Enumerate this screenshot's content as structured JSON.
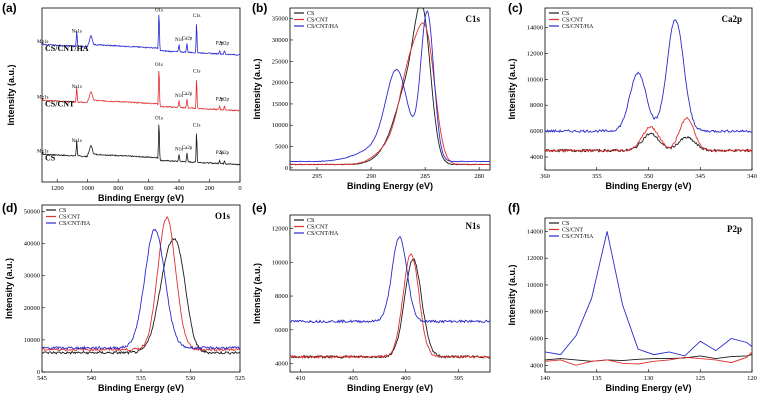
{
  "colors": {
    "CS": "#1a1a1a",
    "CS/CNT": "#e03030",
    "CS/CNT/HA": "#2a2ad0"
  },
  "chart_data": [
    {
      "id": "a",
      "panel_label": "(a)",
      "type": "line",
      "title": "",
      "xlabel": "Binding Energy (eV)",
      "ylabel": "Intensity (a.u.)",
      "xlim": [
        1300,
        0
      ],
      "ylim": [
        0,
        100
      ],
      "xticks": [
        1200,
        1000,
        800,
        600,
        400,
        200,
        0
      ],
      "yticks": [],
      "show_legend": false,
      "series": [
        {
          "name": "CS",
          "label": "CS",
          "offset": 10,
          "scale": 0.55
        },
        {
          "name": "CS/CNT",
          "label": "CS/CNT",
          "offset": 41,
          "scale": 0.55
        },
        {
          "name": "CS/CNT/HA",
          "label": "CS/CNT/HA",
          "offset": 73,
          "scale": 0.55
        }
      ],
      "peak_labels": [
        {
          "text": "Mg1s",
          "x": 1303
        },
        {
          "text": "Na1s",
          "x": 1072
        },
        {
          "text": "O1s",
          "x": 532
        },
        {
          "text": "N1s",
          "x": 400
        },
        {
          "text": "Ca2p",
          "x": 348
        },
        {
          "text": "C1s",
          "x": 285
        },
        {
          "text": "P2p",
          "x": 134
        },
        {
          "text": "Si2p",
          "x": 102
        }
      ]
    },
    {
      "id": "b",
      "panel_label": "(b)",
      "type": "line",
      "title": "C1s",
      "xlabel": "Binding Energy (eV)",
      "ylabel": "Intensity (a.u.)",
      "xlim": [
        297.5,
        279
      ],
      "ylim": [
        -500,
        37500
      ],
      "xticks": [
        295,
        290,
        285,
        280
      ],
      "yticks": [
        0,
        5000,
        10000,
        15000,
        20000,
        25000,
        30000,
        35000
      ],
      "series": [
        {
          "name": "CS",
          "peaks": [
            [
              285.2,
              28800,
              0.75
            ],
            [
              286.5,
              16000,
              1.1
            ],
            [
              288,
              3500,
              1.3
            ]
          ],
          "base": 800
        },
        {
          "name": "CS/CNT",
          "peaks": [
            [
              284.8,
              24000,
              0.8
            ],
            [
              286.3,
              21500,
              1.0
            ],
            [
              288.2,
              4000,
              1.3
            ]
          ],
          "base": 800
        },
        {
          "name": "CS/CNT/HA",
          "peaks": [
            [
              284.8,
              34500,
              0.6
            ],
            [
              287.6,
              18800,
              1.0
            ],
            [
              289,
              3500,
              2.0
            ]
          ],
          "base": 1500
        }
      ]
    },
    {
      "id": "c",
      "panel_label": "(c)",
      "type": "line",
      "title": "Ca2p",
      "xlabel": "Binding Energy (eV)",
      "ylabel": "Intensity (a.u.)",
      "xlim": [
        360,
        340
      ],
      "ylim": [
        3000,
        15500
      ],
      "xticks": [
        360,
        355,
        350,
        345,
        340
      ],
      "yticks": [
        4000,
        6000,
        8000,
        10000,
        12000,
        14000
      ],
      "series": [
        {
          "name": "CS",
          "peaks": [
            [
              349.8,
              1300,
              0.8
            ],
            [
              346.3,
              1000,
              0.8
            ]
          ],
          "base": 4500
        },
        {
          "name": "CS/CNT",
          "peaks": [
            [
              349.8,
              1800,
              0.8
            ],
            [
              346.3,
              2500,
              0.7
            ]
          ],
          "base": 4500
        },
        {
          "name": "CS/CNT/HA",
          "peaks": [
            [
              351,
              4500,
              0.8
            ],
            [
              347.4,
              8600,
              0.8
            ]
          ],
          "base": 6000
        }
      ]
    },
    {
      "id": "d",
      "panel_label": "(d)",
      "type": "line",
      "title": "O1s",
      "xlabel": "Binding Energy (eV)",
      "ylabel": "Intensity (a.u.)",
      "xlim": [
        545,
        525
      ],
      "ylim": [
        0,
        52000
      ],
      "xticks": [
        545,
        540,
        535,
        530,
        525
      ],
      "yticks": [
        0,
        10000,
        20000,
        30000,
        40000,
        50000
      ],
      "series": [
        {
          "name": "CS",
          "peaks": [
            [
              532,
              32000,
              1.1
            ],
            [
              530.9,
              9000,
              0.7
            ]
          ],
          "base": 6000
        },
        {
          "name": "CS/CNT",
          "peaks": [
            [
              532.4,
              41000,
              0.9
            ]
          ],
          "base": 7000
        },
        {
          "name": "CS/CNT/HA",
          "peaks": [
            [
              533.6,
              37000,
              1.0
            ]
          ],
          "base": 7500
        }
      ]
    },
    {
      "id": "e",
      "panel_label": "(e)",
      "type": "line",
      "title": "N1s",
      "xlabel": "Binding Energy (eV)",
      "ylabel": "Intensity (a.u.)",
      "xlim": [
        411,
        392
      ],
      "ylim": [
        3500,
        12800
      ],
      "xticks": [
        410,
        405,
        400,
        395
      ],
      "yticks": [
        4000,
        6000,
        8000,
        10000,
        12000
      ],
      "series": [
        {
          "name": "CS",
          "peaks": [
            [
              399.3,
              5800,
              0.8
            ]
          ],
          "base": 4400
        },
        {
          "name": "CS/CNT",
          "peaks": [
            [
              399.5,
              6100,
              0.75
            ]
          ],
          "base": 4400
        },
        {
          "name": "CS/CNT/HA",
          "peaks": [
            [
              400.6,
              5000,
              0.7
            ]
          ],
          "base": 6500
        }
      ]
    },
    {
      "id": "f",
      "panel_label": "(f)",
      "type": "line",
      "title": "P2p",
      "xlabel": "Binding Energy (eV)",
      "ylabel": "Intensity (a.u.)",
      "xlim": [
        140,
        120
      ],
      "ylim": [
        3500,
        15000
      ],
      "xticks": [
        140,
        135,
        130,
        125,
        120
      ],
      "yticks": [
        4000,
        6000,
        8000,
        10000,
        12000,
        14000
      ],
      "series": [
        {
          "name": "CS",
          "x": [
            140,
            138.5,
            137,
            135.5,
            134,
            132.5,
            131,
            129.5,
            128,
            126.5,
            125,
            123.5,
            122,
            120.5,
            120
          ],
          "y": [
            4400,
            4500,
            4400,
            4300,
            4400,
            4350,
            4450,
            4500,
            4500,
            4550,
            4700,
            4500,
            4650,
            4700,
            4800
          ]
        },
        {
          "name": "CS/CNT",
          "x": [
            140,
            138.5,
            137,
            135.5,
            134,
            132.5,
            131,
            129.5,
            128,
            126.5,
            125,
            123.5,
            122,
            120.5,
            120
          ],
          "y": [
            4300,
            4400,
            4000,
            4300,
            4400,
            4150,
            4100,
            4300,
            4400,
            4600,
            4500,
            4400,
            4200,
            4600,
            5000
          ]
        },
        {
          "name": "CS/CNT/HA",
          "x": [
            140,
            138.5,
            137,
            135.5,
            134,
            132.5,
            131,
            129.5,
            128,
            126.5,
            125,
            123.5,
            122,
            120.5,
            120
          ],
          "y": [
            5000,
            4800,
            6200,
            9000,
            14000,
            8500,
            5200,
            4800,
            5000,
            4700,
            5800,
            5100,
            6000,
            5700,
            5400
          ]
        }
      ]
    }
  ]
}
